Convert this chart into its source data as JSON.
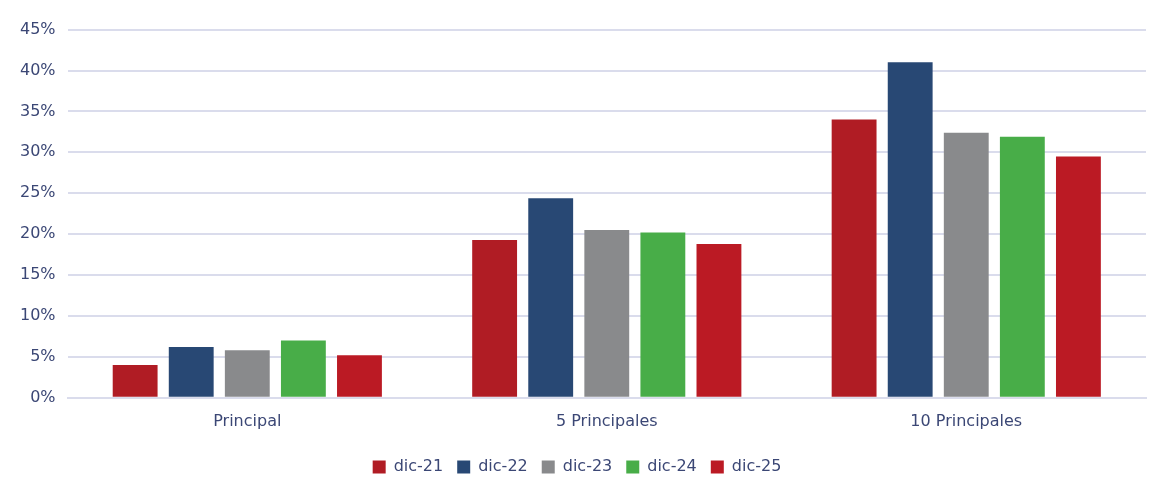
{
  "chart_data": {
    "type": "bar",
    "categories": [
      "Principal",
      "5 Principales",
      "10 Principales"
    ],
    "series": [
      {
        "name": "dic-21",
        "color": "#b01c24",
        "values": [
          4.0,
          19.3,
          34.0
        ]
      },
      {
        "name": "dic-22",
        "color": "#284874",
        "values": [
          6.2,
          24.4,
          41.0
        ]
      },
      {
        "name": "dic-23",
        "color": "#898a8c",
        "values": [
          5.8,
          20.5,
          32.4
        ]
      },
      {
        "name": "dic-24",
        "color": "#48ad48",
        "values": [
          7.0,
          20.2,
          31.9
        ]
      },
      {
        "name": "dic-25",
        "color": "#bb1a24",
        "values": [
          5.2,
          18.8,
          29.5
        ]
      }
    ],
    "ylim": [
      0,
      45
    ],
    "yticks": [
      {
        "value": 0,
        "label": "0%"
      },
      {
        "value": 5,
        "label": "5%"
      },
      {
        "value": 10,
        "label": "10%"
      },
      {
        "value": 15,
        "label": "15%"
      },
      {
        "value": 20,
        "label": "20%"
      },
      {
        "value": 25,
        "label": "25%"
      },
      {
        "value": 30,
        "label": "30%"
      },
      {
        "value": 35,
        "label": "35%"
      },
      {
        "value": 40,
        "label": "40%"
      },
      {
        "value": 45,
        "label": "45%"
      }
    ],
    "grid": "y",
    "legend": "bottom"
  }
}
